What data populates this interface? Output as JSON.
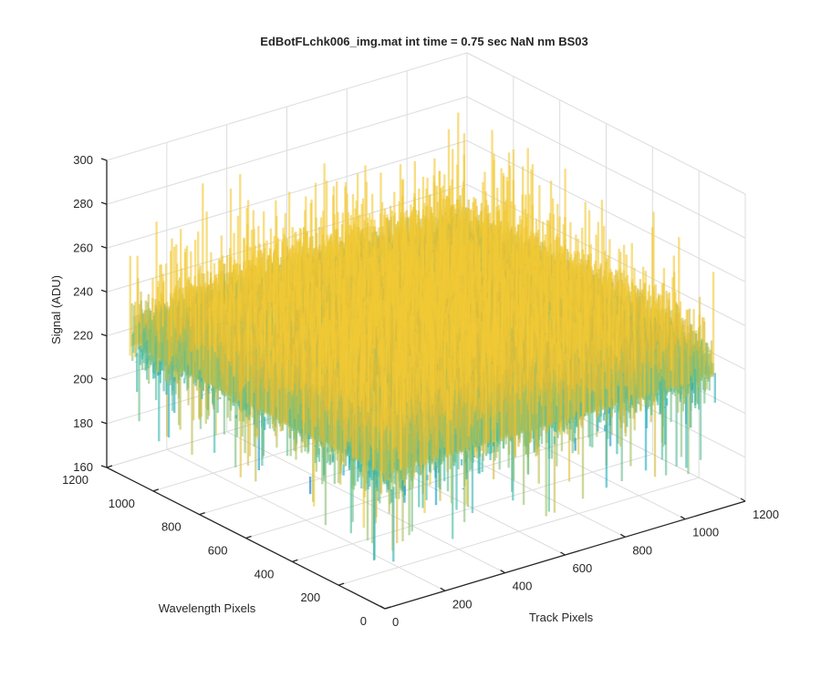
{
  "chart_data": {
    "type": "surface",
    "title": "EdBotFLchk006_img.mat int time = 0.75 sec  NaN nm BS03",
    "xlabel": "Track Pixels",
    "ylabel": "Wavelength Pixels",
    "zlabel": "Signal (ADU)",
    "xlim": [
      0,
      1200
    ],
    "ylim": [
      0,
      1200
    ],
    "zlim": [
      160,
      300
    ],
    "x_ticks": [
      "0",
      "200",
      "400",
      "600",
      "800",
      "1000",
      "1200"
    ],
    "y_ticks": [
      "0",
      "200",
      "400",
      "600",
      "800",
      "1000",
      "1200"
    ],
    "z_ticks": [
      "160",
      "180",
      "200",
      "220",
      "240",
      "260",
      "280",
      "300"
    ],
    "data_extent": {
      "x": [
        1,
        1100
      ],
      "y": [
        1,
        1100
      ]
    },
    "signal_summary": {
      "typical_min": 200,
      "typical_max": 250,
      "spike_min": 175,
      "spike_max": 285,
      "center_mean": 235
    },
    "grid": true,
    "colormap": [
      "#0072BD",
      "#13A6C8",
      "#3DB9A9",
      "#8EC16C",
      "#D9BA3A",
      "#F2C935"
    ]
  }
}
